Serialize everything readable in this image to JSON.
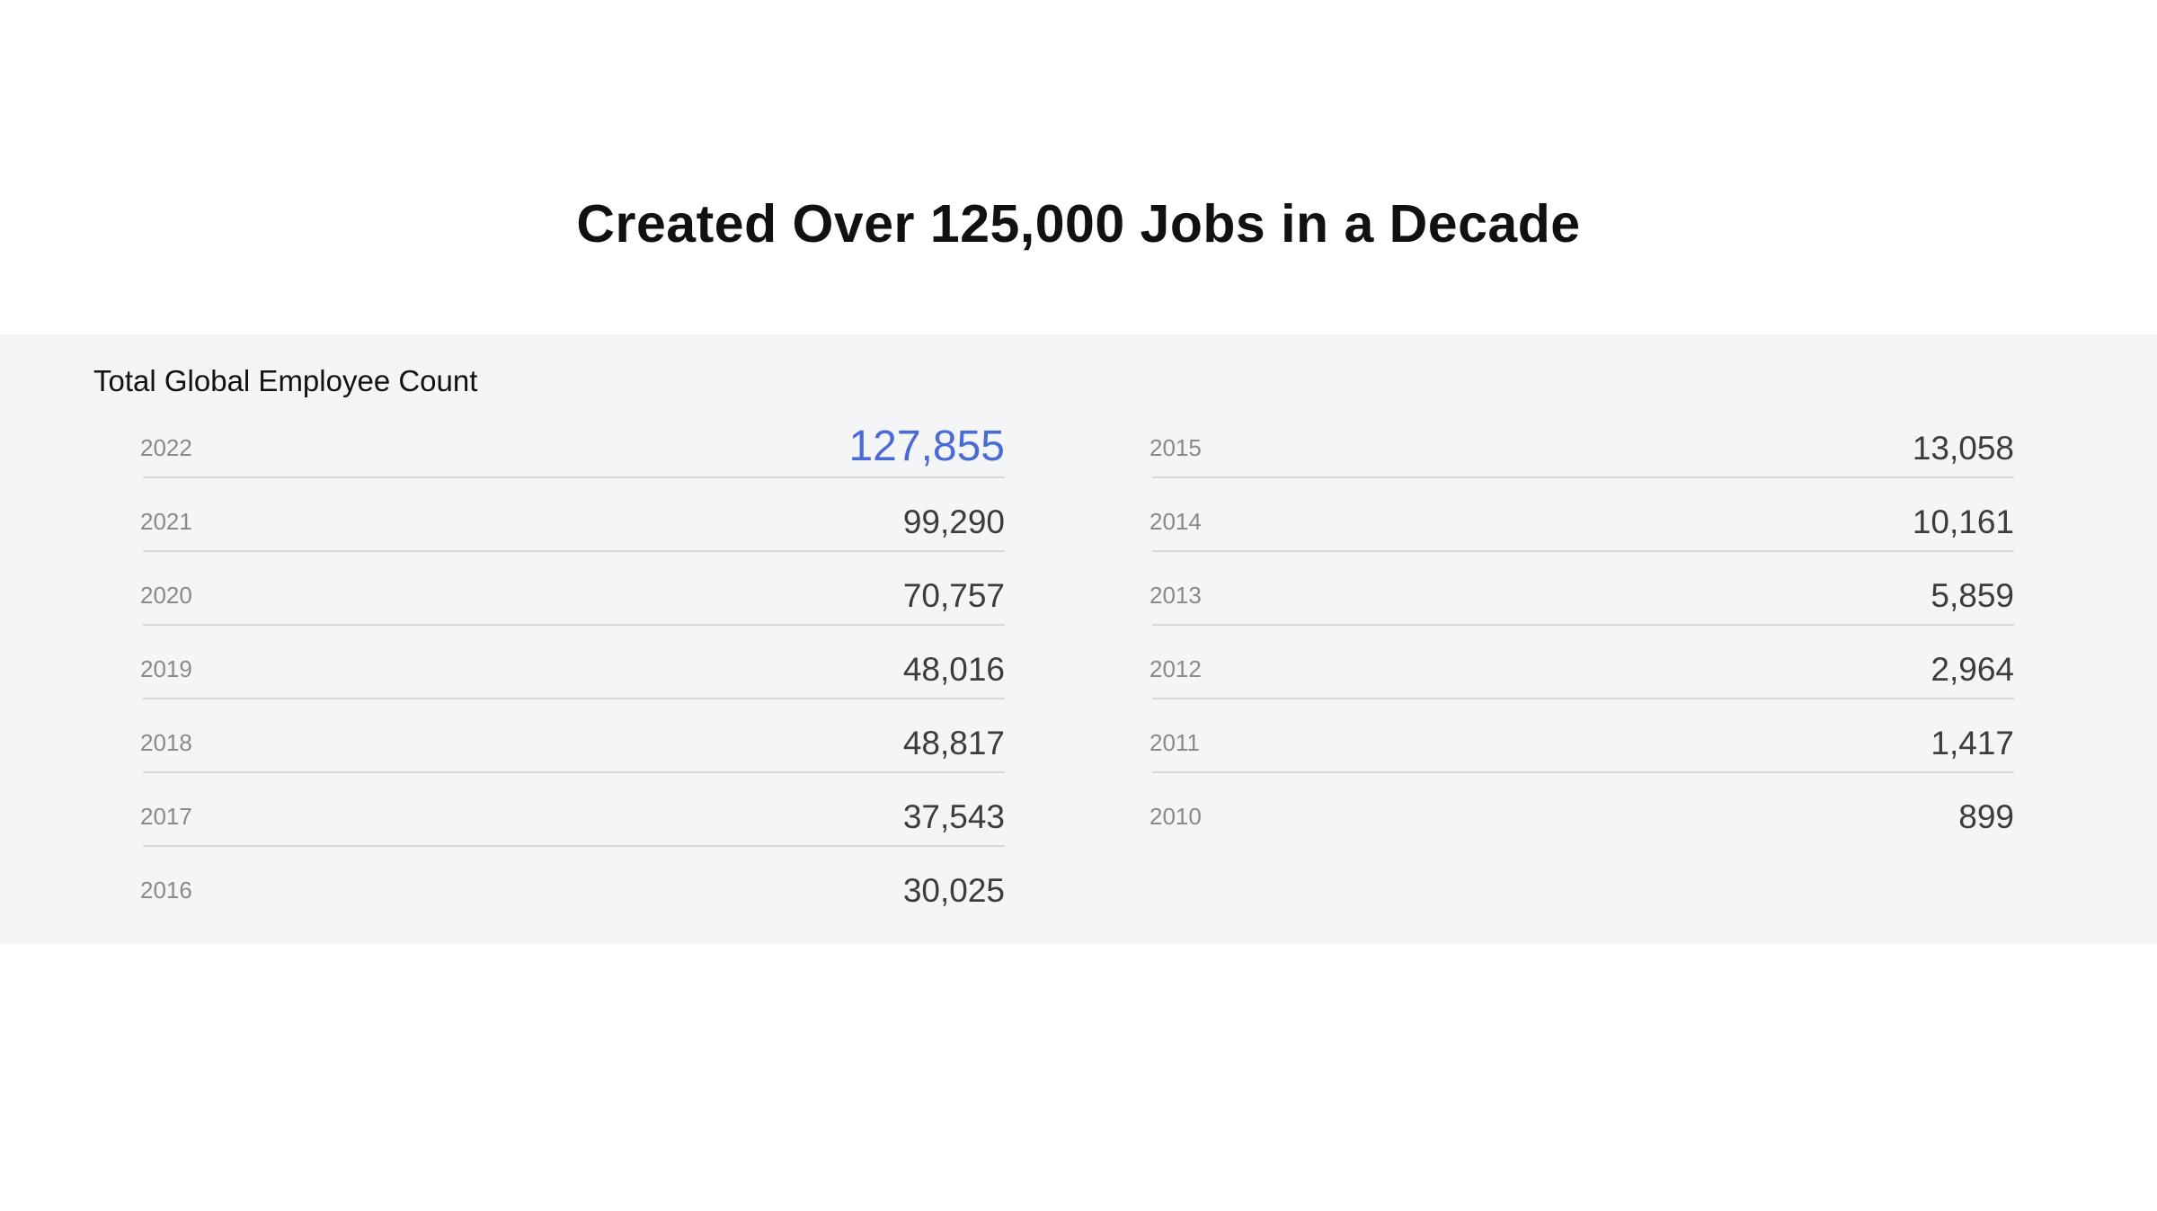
{
  "title": "Created Over 125,000 Jobs in a Decade",
  "colors": {
    "highlight": "#4a6bd6",
    "panel_background": "#f4f5f7",
    "value_text": "#3c3c3c",
    "year_text": "#8a8a8a"
  },
  "chart_data": {
    "type": "table",
    "title": "Total Global Employee Count",
    "columns": [
      "Year",
      "Total Global Employee Count"
    ],
    "highlighted_year": "2022",
    "rows_left": [
      {
        "year": "2022",
        "count": "127,855",
        "value": 127855
      },
      {
        "year": "2021",
        "count": "99,290",
        "value": 99290
      },
      {
        "year": "2020",
        "count": "70,757",
        "value": 70757
      },
      {
        "year": "2019",
        "count": "48,016",
        "value": 48016
      },
      {
        "year": "2018",
        "count": "48,817",
        "value": 48817
      },
      {
        "year": "2017",
        "count": "37,543",
        "value": 37543
      },
      {
        "year": "2016",
        "count": "30,025",
        "value": 30025
      }
    ],
    "rows_right": [
      {
        "year": "2015",
        "count": "13,058",
        "value": 13058
      },
      {
        "year": "2014",
        "count": "10,161",
        "value": 10161
      },
      {
        "year": "2013",
        "count": "5,859",
        "value": 5859
      },
      {
        "year": "2012",
        "count": "2,964",
        "value": 2964
      },
      {
        "year": "2011",
        "count": "1,417",
        "value": 1417
      },
      {
        "year": "2010",
        "count": "899",
        "value": 899
      }
    ]
  }
}
